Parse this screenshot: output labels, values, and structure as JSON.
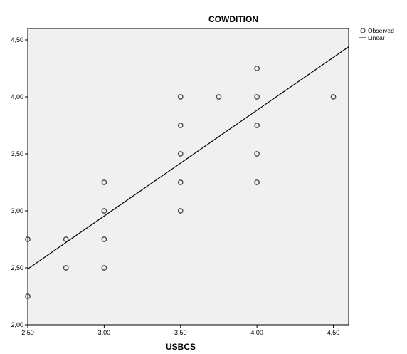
{
  "chart_data": {
    "type": "scatter",
    "title": "COWDITION",
    "xlabel": "USBCS",
    "ylabel": "",
    "xlim": [
      2.5,
      4.6
    ],
    "ylim": [
      2.0,
      4.6
    ],
    "x_ticks": [
      2.5,
      3.0,
      3.5,
      4.0,
      4.5
    ],
    "y_ticks": [
      2.0,
      2.5,
      3.0,
      3.5,
      4.0,
      4.5
    ],
    "x_tick_labels": [
      "2,50",
      "3,00",
      "3,50",
      "4,00",
      "4,50"
    ],
    "y_tick_labels": [
      "2,00",
      "2,50",
      "3,00",
      "3,50",
      "4,00",
      "4,50"
    ],
    "grid": false,
    "legend_position": "top-right",
    "colors": {
      "plot_background": "#f0f0f0",
      "marker": "#444444",
      "line": "#000000"
    },
    "series": [
      {
        "name": "Observed",
        "kind": "scatter",
        "points": [
          {
            "x": 2.5,
            "y": 2.75
          },
          {
            "x": 2.5,
            "y": 2.25
          },
          {
            "x": 2.75,
            "y": 2.75
          },
          {
            "x": 2.75,
            "y": 2.5
          },
          {
            "x": 3.0,
            "y": 3.25
          },
          {
            "x": 3.0,
            "y": 3.0
          },
          {
            "x": 3.0,
            "y": 2.75
          },
          {
            "x": 3.0,
            "y": 2.5
          },
          {
            "x": 3.5,
            "y": 4.0
          },
          {
            "x": 3.5,
            "y": 3.75
          },
          {
            "x": 3.5,
            "y": 3.5
          },
          {
            "x": 3.5,
            "y": 3.25
          },
          {
            "x": 3.5,
            "y": 3.0
          },
          {
            "x": 3.75,
            "y": 4.0
          },
          {
            "x": 4.0,
            "y": 4.25
          },
          {
            "x": 4.0,
            "y": 4.0
          },
          {
            "x": 4.0,
            "y": 3.75
          },
          {
            "x": 4.0,
            "y": 3.5
          },
          {
            "x": 4.0,
            "y": 3.25
          },
          {
            "x": 4.5,
            "y": 4.0
          }
        ]
      },
      {
        "name": "Linear",
        "kind": "line",
        "points": [
          {
            "x": 2.5,
            "y": 2.49
          },
          {
            "x": 4.6,
            "y": 4.44
          }
        ]
      }
    ]
  }
}
